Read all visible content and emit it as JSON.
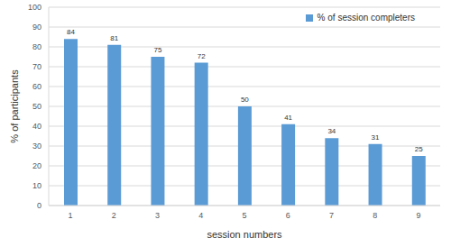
{
  "chart_data": {
    "type": "bar",
    "x_label": "session numbers",
    "y_label": "% of participants",
    "categories": [
      "1",
      "2",
      "3",
      "4",
      "5",
      "6",
      "7",
      "8",
      "9"
    ],
    "series": [
      {
        "name": "% of session completers",
        "color": "#5b9bd5",
        "values": [
          84,
          81,
          75,
          72,
          50,
          41,
          34,
          31,
          25
        ]
      }
    ],
    "ylim": [
      0,
      100
    ],
    "yticks": [
      0,
      10,
      20,
      30,
      40,
      50,
      60,
      70,
      80,
      90,
      100
    ],
    "grid": true,
    "legend": "upper right",
    "data_labels": true
  }
}
